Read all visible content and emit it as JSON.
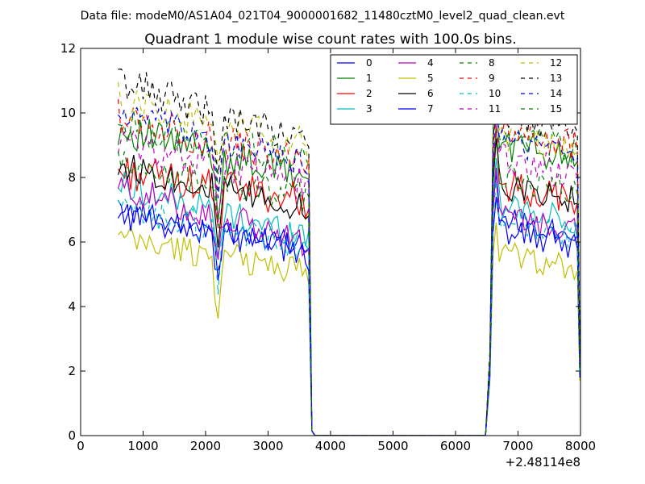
{
  "figure": {
    "suptitle": "Data file: modeM0/AS1A04_021T04_9000001682_11480cztM0_level2_quad_clean.evt"
  },
  "chart_data": {
    "type": "line",
    "title": "Quadrant 1 module wise count rates with 100.0s bins.",
    "xlabel": "",
    "ylabel": "",
    "x_offset_label": "+2.48114e8",
    "xlim": [
      0,
      8000
    ],
    "ylim": [
      0,
      12
    ],
    "x_ticks": [
      0,
      1000,
      2000,
      3000,
      4000,
      5000,
      6000,
      7000,
      8000
    ],
    "x_tick_labels": [
      "0",
      "1000",
      "2000",
      "3000",
      "4000",
      "5000",
      "6000",
      "7000",
      "8000"
    ],
    "y_ticks": [
      0,
      2,
      4,
      6,
      8,
      10,
      12
    ],
    "y_tick_labels": [
      "0",
      "2",
      "4",
      "6",
      "8",
      "10",
      "12"
    ],
    "grid": false,
    "legend_position": "top-right",
    "legend_columns": 4,
    "time_grid": {
      "seg1_start": 600,
      "seg1_end": 3600,
      "drop": [
        3650,
        3700
      ],
      "gap_start": 3700,
      "gap_end": 6480,
      "rise": [
        6550,
        6600
      ],
      "seg2_start": 6650,
      "seg2_end": 7900,
      "tail": [
        7950,
        7990
      ],
      "step": 50
    },
    "series": [
      {
        "name": "0",
        "color": "#0000ff",
        "dash": false,
        "base1": 6.95,
        "base2": 6.8,
        "amp": 0.25,
        "trend": -1.0,
        "dip": 1.8,
        "peak": 8.2,
        "edge": 1.9
      },
      {
        "name": "1",
        "color": "#008000",
        "dash": false,
        "base1": 9.5,
        "base2": 9.1,
        "amp": 0.35,
        "trend": -1.5,
        "dip": 1.7,
        "peak": 10.9,
        "edge": 2.3
      },
      {
        "name": "2",
        "color": "#ff0000",
        "dash": false,
        "base1": 8.2,
        "base2": 7.8,
        "amp": 0.35,
        "trend": -0.9,
        "dip": 1.8,
        "peak": 9.6,
        "edge": 2.1
      },
      {
        "name": "3",
        "color": "#00bfbf",
        "dash": false,
        "base1": 7.8,
        "base2": 7.2,
        "amp": 0.3,
        "trend": -1.6,
        "dip": 1.6,
        "peak": 8.6,
        "edge": 2.0
      },
      {
        "name": "4",
        "color": "#bf00bf",
        "dash": false,
        "base1": 7.7,
        "base2": 6.8,
        "amp": 0.3,
        "trend": -1.7,
        "dip": 1.5,
        "peak": 8.3,
        "edge": 2.0
      },
      {
        "name": "5",
        "color": "#bfbf00",
        "dash": false,
        "base1": 6.1,
        "base2": 5.7,
        "amp": 0.3,
        "trend": -1.0,
        "dip": 1.8,
        "peak": 6.6,
        "edge": 1.7
      },
      {
        "name": "6",
        "color": "#000000",
        "dash": false,
        "base1": 8.4,
        "base2": 7.8,
        "amp": 0.3,
        "trend": -1.4,
        "dip": 1.5,
        "peak": 9.2,
        "edge": 2.2
      },
      {
        "name": "7",
        "color": "#0000ff",
        "dash": false,
        "base1": 6.9,
        "base2": 6.4,
        "amp": 0.3,
        "trend": -1.2,
        "dip": 1.5,
        "peak": 7.4,
        "edge": 1.8
      },
      {
        "name": "8",
        "color": "#008000",
        "dash": true,
        "base1": 9.6,
        "base2": 9.3,
        "amp": 0.35,
        "trend": -1.0,
        "dip": 1.5,
        "peak": 11.2,
        "edge": 2.4
      },
      {
        "name": "9",
        "color": "#ff0000",
        "dash": true,
        "base1": 9.9,
        "base2": 9.5,
        "amp": 0.35,
        "trend": -1.5,
        "dip": 1.7,
        "peak": 10.4,
        "edge": 2.3
      },
      {
        "name": "10",
        "color": "#00bfbf",
        "dash": true,
        "base1": 7.0,
        "base2": 6.7,
        "amp": 0.3,
        "trend": -1.1,
        "dip": 1.6,
        "peak": 7.9,
        "edge": 1.9
      },
      {
        "name": "11",
        "color": "#bf00bf",
        "dash": true,
        "base1": 9.1,
        "base2": 8.6,
        "amp": 0.35,
        "trend": -1.3,
        "dip": 1.6,
        "peak": 9.7,
        "edge": 2.2
      },
      {
        "name": "12",
        "color": "#bfbf00",
        "dash": true,
        "base1": 10.4,
        "base2": 9.4,
        "amp": 0.35,
        "trend": -1.4,
        "dip": 1.6,
        "peak": 10.9,
        "edge": 2.4
      },
      {
        "name": "13",
        "color": "#000000",
        "dash": true,
        "base1": 11.0,
        "base2": 10.0,
        "amp": 0.35,
        "trend": -1.9,
        "dip": 1.4,
        "peak": 10.7,
        "edge": 2.6
      },
      {
        "name": "14",
        "color": "#0000ff",
        "dash": true,
        "base1": 10.0,
        "base2": 9.2,
        "amp": 0.3,
        "trend": -1.6,
        "dip": 1.5,
        "peak": 10.2,
        "edge": 2.3
      },
      {
        "name": "15",
        "color": "#008000",
        "dash": true,
        "base1": 8.4,
        "base2": 8.1,
        "amp": 0.3,
        "trend": -1.0,
        "dip": 1.6,
        "peak": 9.5,
        "edge": 2.1
      }
    ]
  }
}
